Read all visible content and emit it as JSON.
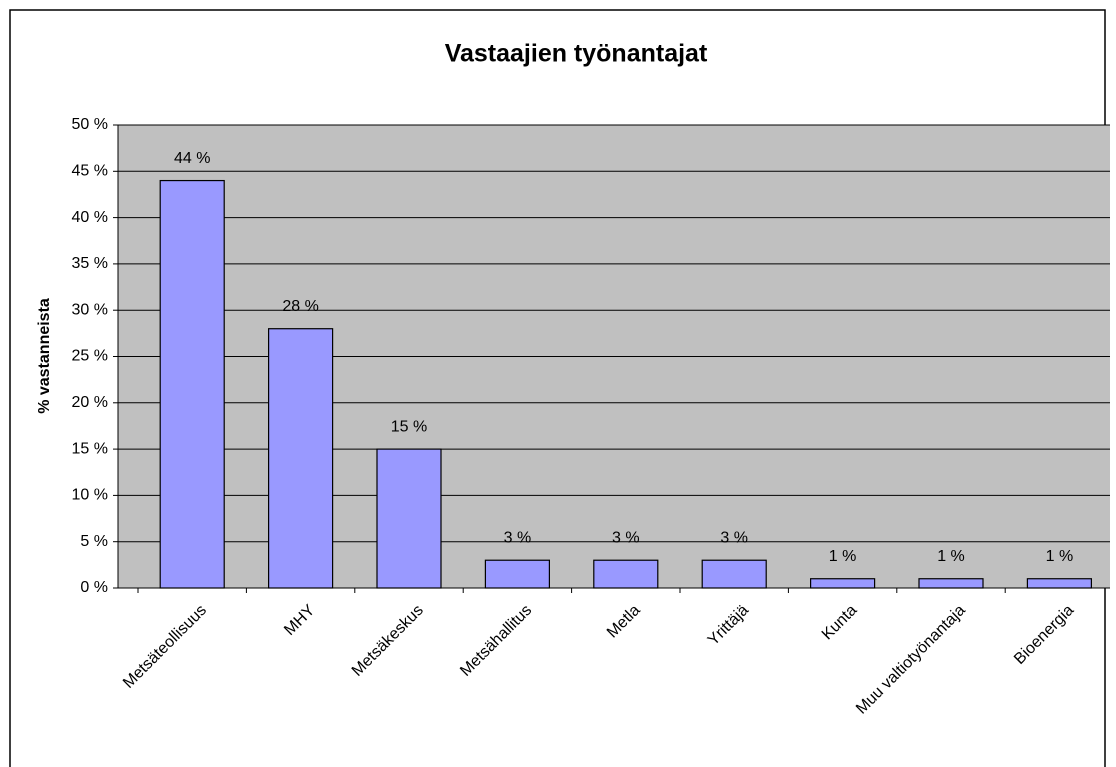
{
  "chart_data": {
    "type": "bar",
    "title": "Vastaajien työnantajat",
    "y_label": "% vastanneista",
    "categories": [
      "Metsäteollisuus",
      "MHY",
      "Metsäkeskus",
      "Metsähallitus",
      "Metla",
      "Yrittäjä",
      "Kunta",
      "Muu valtiotyönantaja",
      "Bioenergia"
    ],
    "values": [
      44,
      28,
      15,
      3,
      3,
      3,
      1,
      1,
      1
    ],
    "value_labels": [
      "44 %",
      "28 %",
      "15 %",
      "3 %",
      "3 %",
      "3 %",
      "1 %",
      "1 %",
      "1 %"
    ],
    "color": "#9999ff",
    "ylim": [
      0,
      50
    ],
    "yticks": [
      {
        "value": 0,
        "label": "0 %"
      },
      {
        "value": 5,
        "label": "5 %"
      },
      {
        "value": 10,
        "label": "10 %"
      },
      {
        "value": 15,
        "label": "15 %"
      },
      {
        "value": 20,
        "label": "20 %"
      },
      {
        "value": 25,
        "label": "25 %"
      },
      {
        "value": 30,
        "label": "30 %"
      },
      {
        "value": 35,
        "label": "35 %"
      },
      {
        "value": 40,
        "label": "40 %"
      },
      {
        "value": 45,
        "label": "45 %"
      },
      {
        "value": 50,
        "label": "50 %"
      }
    ],
    "grid": true
  }
}
